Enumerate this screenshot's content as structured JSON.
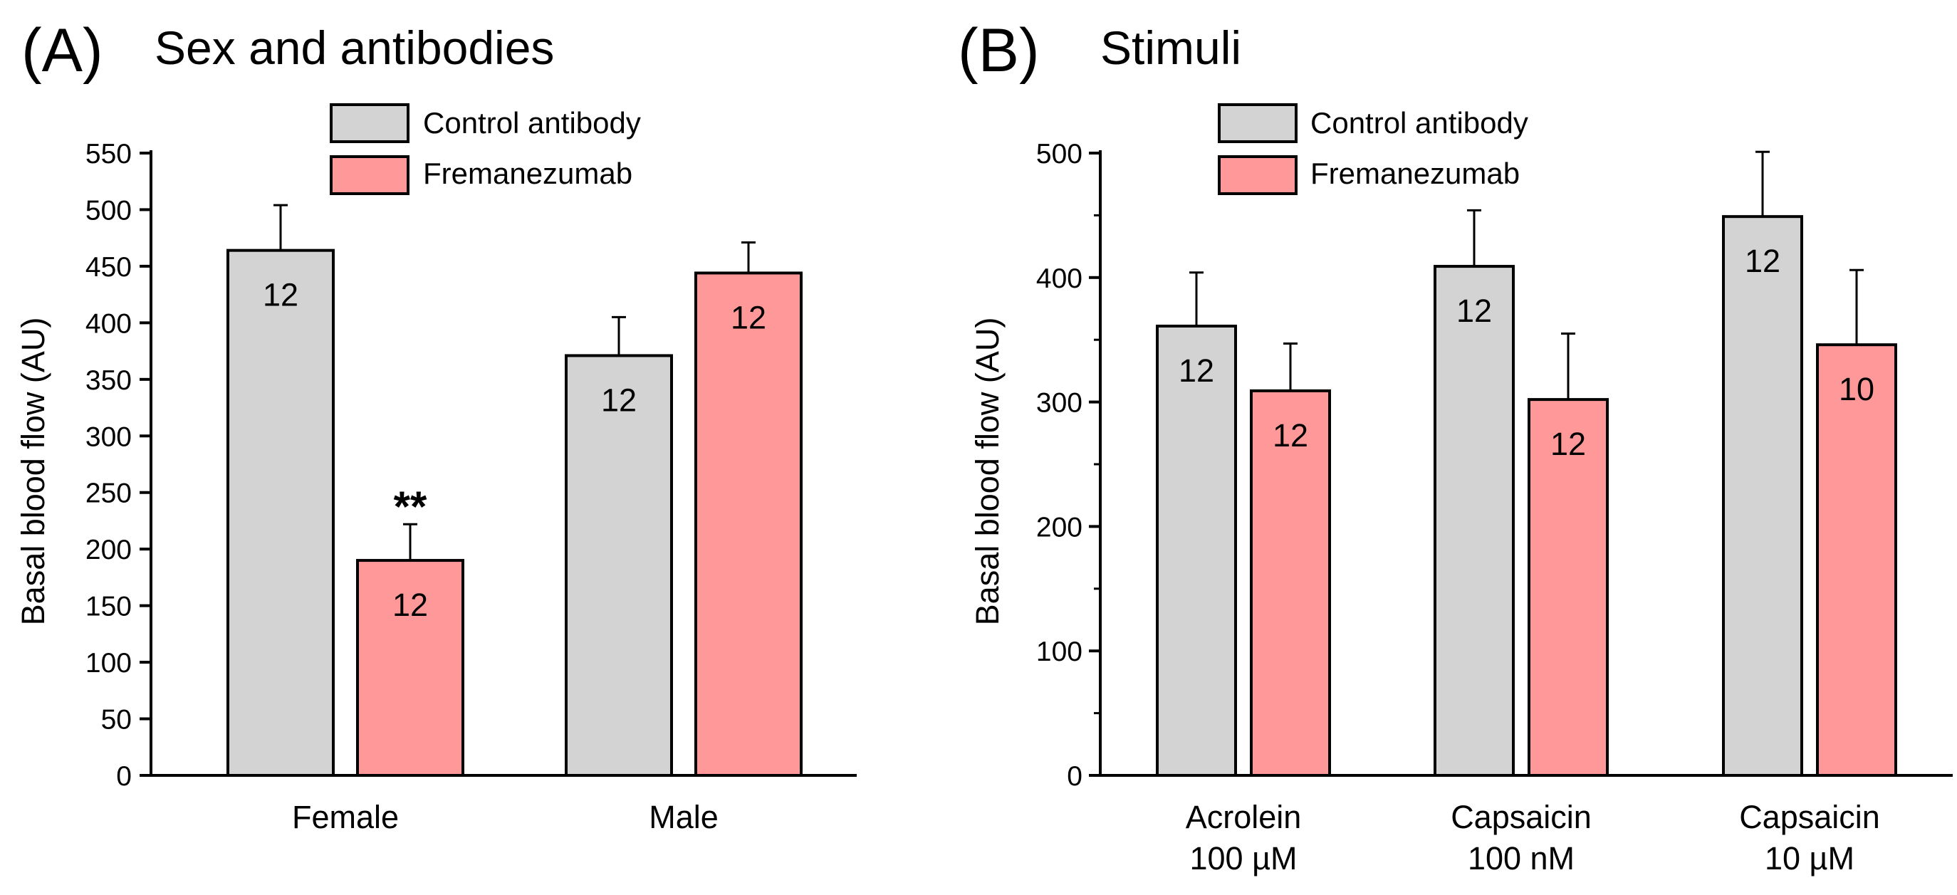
{
  "colors": {
    "control": "#d3d3d3",
    "fremanezumab": "#ff9999",
    "stroke": "#000000"
  },
  "legend": [
    "Control antibody",
    "Fremanezumab"
  ],
  "chart_data": [
    {
      "panel": "(A)",
      "type": "bar",
      "title": "Sex and antibodies",
      "xlabel": "",
      "ylabel": "Basal blood flow (AU)",
      "ylim": [
        0,
        550
      ],
      "yticks": [
        0,
        50,
        100,
        150,
        200,
        250,
        300,
        350,
        400,
        450,
        500,
        550
      ],
      "categories": [
        [
          "Female"
        ],
        [
          "Male"
        ]
      ],
      "series": [
        {
          "name": "Control antibody",
          "values": [
            464,
            371
          ],
          "errors": [
            40,
            34
          ],
          "n": [
            "12",
            "12"
          ]
        },
        {
          "name": "Fremanezumab",
          "values": [
            190,
            444
          ],
          "errors": [
            32,
            27
          ],
          "n": [
            "12",
            "12"
          ]
        }
      ],
      "annotations": [
        {
          "text": "**",
          "category": 0,
          "series": 1
        }
      ],
      "legend_position": "top-center"
    },
    {
      "panel": "(B)",
      "type": "bar",
      "title": "Stimuli",
      "xlabel": "",
      "ylabel": "Basal blood flow (AU)",
      "ylim": [
        0,
        500
      ],
      "yticks": [
        0,
        100,
        200,
        300,
        400,
        500
      ],
      "categories": [
        [
          "Acrolein",
          "100 µM"
        ],
        [
          "Capsaicin",
          "100 nM"
        ],
        [
          "Capsaicin",
          "10 µM"
        ]
      ],
      "series": [
        {
          "name": "Control antibody",
          "values": [
            361,
            409,
            449
          ],
          "errors": [
            43,
            45,
            52
          ],
          "n": [
            "12",
            "12",
            "12"
          ]
        },
        {
          "name": "Fremanezumab",
          "values": [
            309,
            302,
            346
          ],
          "errors": [
            38,
            53,
            60
          ],
          "n": [
            "12",
            "12",
            "10"
          ]
        }
      ],
      "annotations": [],
      "legend_position": "top-center"
    }
  ]
}
